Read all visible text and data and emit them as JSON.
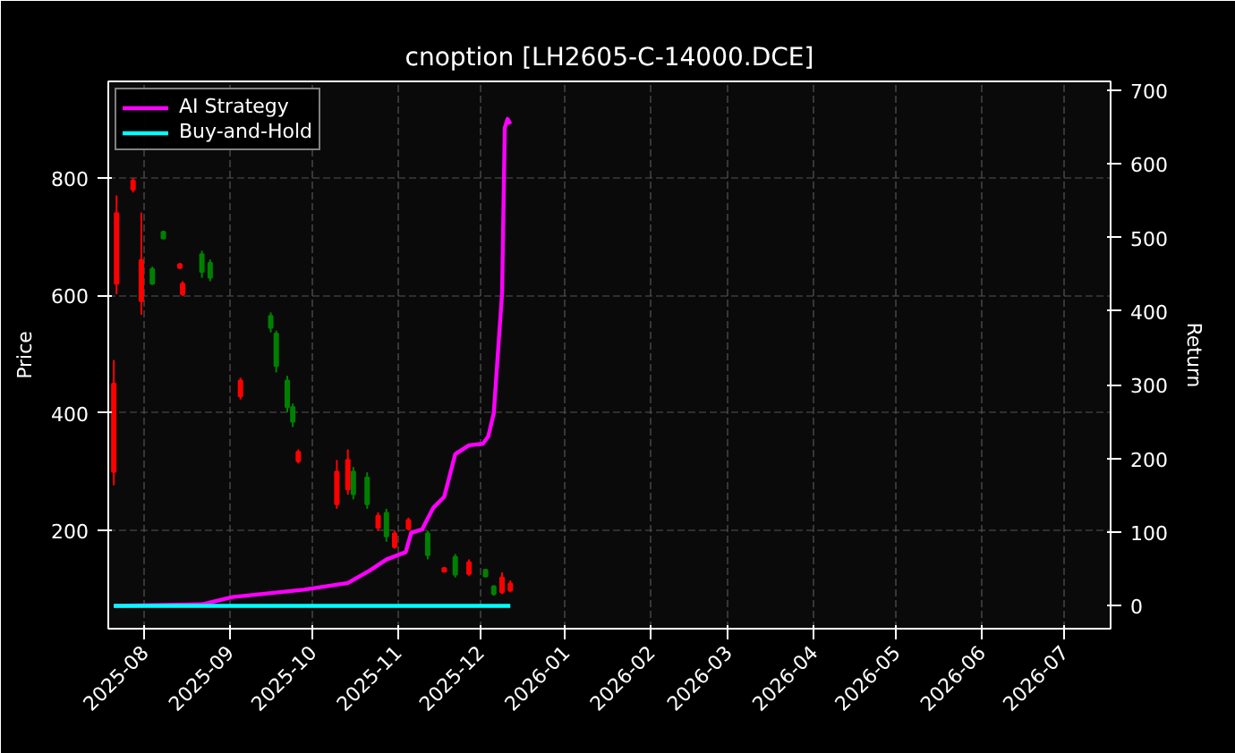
{
  "chart_data": {
    "type": "candlestick",
    "title": "cnoption [LH2605-C-14000.DCE]",
    "ylabel": "Price",
    "y2label": "Return",
    "x": [
      "2025-07-21",
      "2025-07-22",
      "2025-07-28",
      "2025-07-31",
      "2025-08-04",
      "2025-08-08",
      "2025-08-14",
      "2025-08-15",
      "2025-08-22",
      "2025-08-25",
      "2025-09-05",
      "2025-09-16",
      "2025-09-18",
      "2025-09-22",
      "2025-09-24",
      "2025-09-26",
      "2025-10-10",
      "2025-10-14",
      "2025-10-16",
      "2025-10-21",
      "2025-10-25",
      "2025-10-28",
      "2025-10-31",
      "2025-11-05",
      "2025-11-12",
      "2025-11-18",
      "2025-11-22",
      "2025-11-27",
      "2025-12-03",
      "2025-12-06",
      "2025-12-09",
      "2025-12-12"
    ],
    "ohlc": [
      [
        300,
        490,
        277,
        450
      ],
      [
        620,
        770,
        602,
        740
      ],
      [
        780,
        800,
        775,
        795
      ],
      [
        590,
        741,
        567,
        660
      ],
      [
        645,
        649,
        618,
        620
      ],
      [
        708,
        710,
        695,
        697
      ],
      [
        647,
        655,
        645,
        653
      ],
      [
        602,
        624,
        599,
        620
      ],
      [
        670,
        676,
        630,
        640
      ],
      [
        655,
        661,
        624,
        630
      ],
      [
        428,
        460,
        423,
        455
      ],
      [
        565,
        571,
        537,
        545
      ],
      [
        535,
        540,
        469,
        480
      ],
      [
        455,
        463,
        401,
        410
      ],
      [
        410,
        416,
        376,
        385
      ],
      [
        318,
        338,
        314,
        334
      ],
      [
        245,
        320,
        237,
        300
      ],
      [
        270,
        338,
        261,
        320
      ],
      [
        300,
        308,
        253,
        262
      ],
      [
        290,
        299,
        237,
        245
      ],
      [
        205,
        231,
        200,
        225
      ],
      [
        230,
        237,
        181,
        190
      ],
      [
        172,
        200,
        169,
        195
      ],
      [
        203,
        222,
        200,
        218
      ],
      [
        195,
        200,
        151,
        158
      ],
      [
        130,
        138,
        129,
        136
      ],
      [
        155,
        160,
        120,
        125
      ],
      [
        126,
        151,
        123,
        146
      ],
      [
        133,
        135,
        120,
        122
      ],
      [
        105,
        107,
        89,
        92
      ],
      [
        95,
        129,
        92,
        120
      ],
      [
        98,
        115,
        95,
        110
      ]
    ],
    "colors": [
      "#ff0000",
      "#ff0000",
      "#ff0000",
      "#ff0000",
      "#008000",
      "#008000",
      "#ff0000",
      "#ff0000",
      "#008000",
      "#008000",
      "#ff0000",
      "#008000",
      "#008000",
      "#008000",
      "#008000",
      "#ff0000",
      "#ff0000",
      "#ff0000",
      "#008000",
      "#008000",
      "#ff0000",
      "#008000",
      "#ff0000",
      "#ff0000",
      "#008000",
      "#ff0000",
      "#008000",
      "#ff0000",
      "#008000",
      "#008000",
      "#ff0000",
      "#ff0000"
    ],
    "series": [
      {
        "name": "AI Strategy",
        "type": "line",
        "axis": "y2",
        "color": "#ff00ff",
        "x": [
          "2025-07-21",
          "2025-08-22",
          "2025-09-02",
          "2025-09-28",
          "2025-10-14",
          "2025-10-22",
          "2025-10-28",
          "2025-11-04",
          "2025-11-06",
          "2025-11-10",
          "2025-11-14",
          "2025-11-18",
          "2025-11-22",
          "2025-11-27",
          "2025-12-02",
          "2025-12-04",
          "2025-12-06",
          "2025-12-09",
          "2025-12-10",
          "2025-12-11",
          "2025-12-12"
        ],
        "values": [
          0,
          2,
          12,
          22,
          31,
          48,
          63,
          73,
          99,
          104,
          133,
          148,
          206,
          218,
          220,
          230,
          262,
          424,
          649,
          661,
          654
        ]
      },
      {
        "name": "Buy-and-Hold",
        "type": "line",
        "axis": "y2",
        "color": "#00ffff",
        "x": [
          "2025-07-21",
          "2025-12-12"
        ],
        "values": [
          0,
          0
        ]
      }
    ],
    "xlim": [
      "2025-07-19",
      "2026-07-18"
    ],
    "xticks": [
      {
        "value": "2025-08-01",
        "label": "2025-08"
      },
      {
        "value": "2025-09-01",
        "label": "2025-09"
      },
      {
        "value": "2025-10-01",
        "label": "2025-10"
      },
      {
        "value": "2025-11-01",
        "label": "2025-11"
      },
      {
        "value": "2025-12-01",
        "label": "2025-12"
      },
      {
        "value": "2026-01-01",
        "label": "2026-01"
      },
      {
        "value": "2026-02-01",
        "label": "2026-02"
      },
      {
        "value": "2026-03-01",
        "label": "2026-03"
      },
      {
        "value": "2026-04-01",
        "label": "2026-04"
      },
      {
        "value": "2026-05-01",
        "label": "2026-05"
      },
      {
        "value": "2026-06-01",
        "label": "2026-06"
      },
      {
        "value": "2026-07-01",
        "label": "2026-07"
      }
    ],
    "ylim": [
      33,
      964
    ],
    "yticks": [
      200,
      400,
      600,
      800
    ],
    "y2lim": [
      -31,
      712
    ],
    "y2ticks": [
      0,
      100,
      200,
      300,
      400,
      500,
      600,
      700
    ],
    "grid": true,
    "legend": "top left",
    "line_style": "solid"
  }
}
